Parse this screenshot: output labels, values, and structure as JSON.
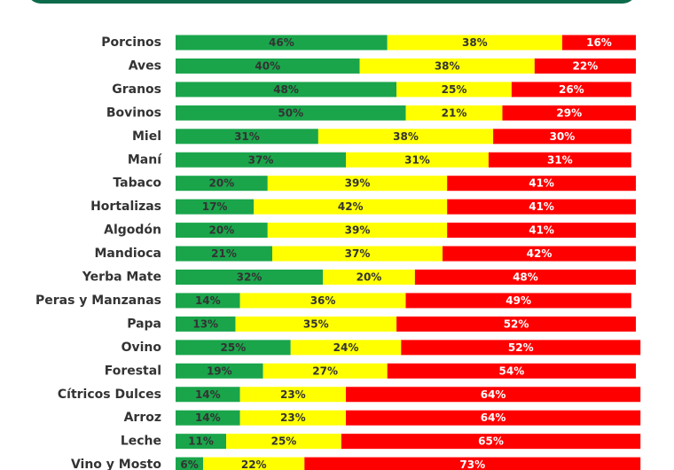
{
  "colors": {
    "green": "#1aa54b",
    "yellow": "#ffff00",
    "red": "#ff0000",
    "header": "#0d6b4c"
  },
  "chart_data": {
    "type": "bar",
    "orientation": "horizontal",
    "stacked": "percent",
    "xlim": [
      0,
      100
    ],
    "legend": "none",
    "grid": false,
    "categories": [
      "Porcinos",
      "Aves",
      "Granos",
      "Bovinos",
      "Miel",
      "Maní",
      "Tabaco",
      "Hortalizas",
      "Algodón",
      "Mandioca",
      "Yerba Mate",
      "Peras y Manzanas",
      "Papa",
      "Ovino",
      "Forestal",
      "Cítricos Dulces",
      "Arroz",
      "Leche",
      "Vino y Mosto"
    ],
    "series": [
      {
        "color": "#1aa54b",
        "values": [
          46,
          40,
          48,
          50,
          31,
          37,
          20,
          17,
          20,
          21,
          32,
          14,
          13,
          25,
          19,
          14,
          14,
          11,
          6
        ]
      },
      {
        "color": "#ffff00",
        "values": [
          38,
          38,
          25,
          21,
          38,
          31,
          39,
          42,
          39,
          37,
          20,
          36,
          35,
          24,
          27,
          23,
          23,
          25,
          22
        ]
      },
      {
        "color": "#ff0000",
        "values": [
          16,
          22,
          26,
          29,
          30,
          31,
          41,
          41,
          41,
          42,
          48,
          49,
          52,
          52,
          54,
          64,
          64,
          65,
          73
        ]
      }
    ],
    "label_suffix": "%"
  }
}
